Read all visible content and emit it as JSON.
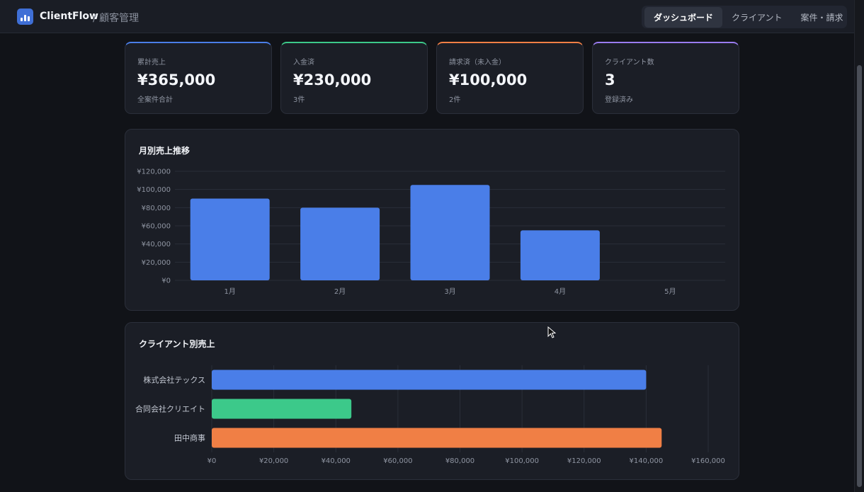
{
  "header": {
    "brand": "ClientFlow",
    "subtitle": "/ 顧客管理",
    "nav": [
      {
        "label": "ダッシュボード",
        "active": true
      },
      {
        "label": "クライアント",
        "active": false
      },
      {
        "label": "案件・請求",
        "active": false
      }
    ]
  },
  "cards": [
    {
      "label": "累計売上",
      "value": "¥365,000",
      "sub": "全案件合計",
      "color": "#4a7ee8"
    },
    {
      "label": "入金済",
      "value": "¥230,000",
      "sub": "3件",
      "color": "#3cc98a"
    },
    {
      "label": "請求済（未入金）",
      "value": "¥100,000",
      "sub": "2件",
      "color": "#f07f45"
    },
    {
      "label": "クライアント数",
      "value": "3",
      "sub": "登録済み",
      "color": "#9a7cf0"
    }
  ],
  "chart_data": [
    {
      "type": "bar",
      "title": "月別売上推移",
      "categories": [
        "1月",
        "2月",
        "3月",
        "4月",
        "5月"
      ],
      "values": [
        90000,
        80000,
        105000,
        55000,
        0
      ],
      "ylim": [
        0,
        120000
      ],
      "yticks": [
        "¥0",
        "¥20,000",
        "¥40,000",
        "¥60,000",
        "¥80,000",
        "¥100,000",
        "¥120,000"
      ],
      "color": "#4a7ee8",
      "grid": true
    },
    {
      "type": "bar",
      "orientation": "horizontal",
      "title": "クライアント別売上",
      "categories": [
        "株式会社テックス",
        "合同会社クリエイト",
        "田中商事"
      ],
      "values": [
        140000,
        45000,
        145000
      ],
      "colors": [
        "#4a7ee8",
        "#3cc98a",
        "#f07f45"
      ],
      "xlim": [
        0,
        160000
      ],
      "xticks": [
        "¥0",
        "¥20,000",
        "¥40,000",
        "¥60,000",
        "¥80,000",
        "¥100,000",
        "¥120,000",
        "¥140,000",
        "¥160,000"
      ],
      "grid": true
    }
  ]
}
